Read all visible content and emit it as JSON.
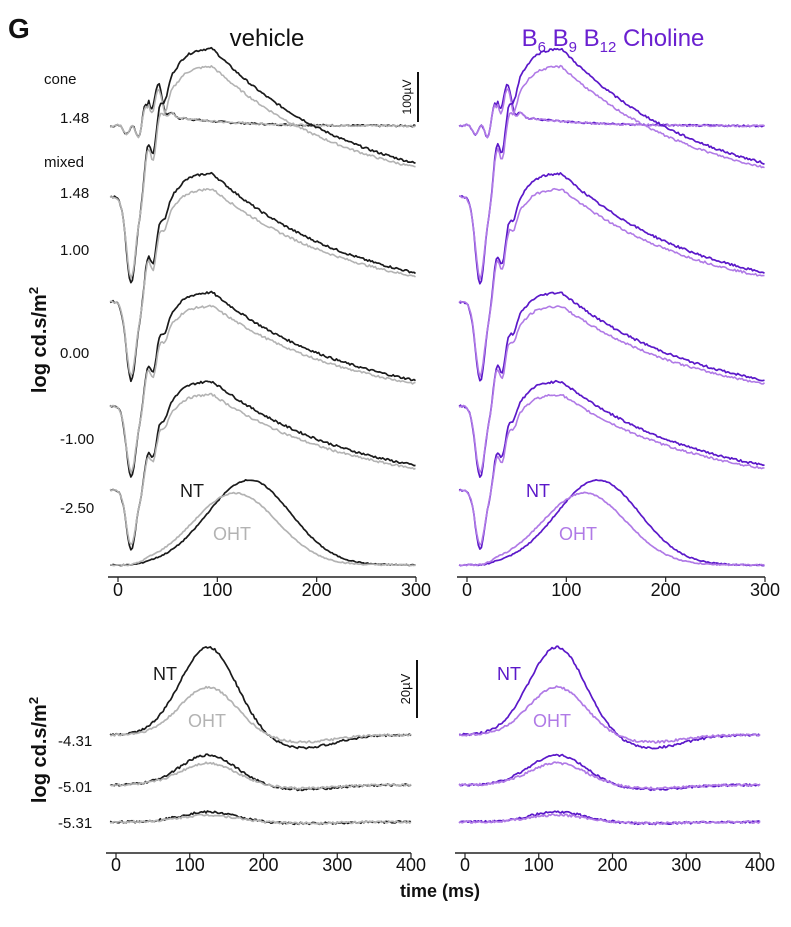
{
  "figure": {
    "panel_label": "G",
    "column_titles": {
      "vehicle": "vehicle",
      "treatment_parts": [
        "B",
        "6",
        " B",
        "9",
        " B",
        "12",
        " Choline"
      ]
    },
    "y_axis_label": "log cd.s/m",
    "y_axis_label_sup": "2",
    "x_axis_label": "time (ms)",
    "scale_bars": {
      "top": "100µV",
      "bottom": "20µV"
    },
    "row_labels_top": {
      "cone": "cone",
      "mixed": "mixed",
      "intensities": [
        "1.48",
        "1.48",
        "1.00",
        "0.00",
        "-1.00",
        "-2.50"
      ]
    },
    "row_labels_bottom": {
      "intensities": [
        "-4.31",
        "-5.01",
        "-5.31"
      ]
    },
    "legend": {
      "nt": "NT",
      "oht": "OHT"
    },
    "colors": {
      "vehicle_nt": "#1a1a1a",
      "vehicle_oht": "#b3b3b3",
      "treat_nt": "#5b18c9",
      "treat_oht": "#b07ae6",
      "title_treat": "#6a20d0"
    }
  },
  "chart_data": [
    {
      "type": "line",
      "panel": "vehicle-top",
      "x_unit": "ms",
      "xlim": [
        0,
        300
      ],
      "x_ticks": [
        "0",
        "100",
        "200",
        "300"
      ],
      "series": [
        {
          "name": "NT"
        },
        {
          "name": "OHT"
        }
      ]
    },
    {
      "type": "line",
      "panel": "treatment-top",
      "x_unit": "ms",
      "xlim": [
        0,
        300
      ],
      "x_ticks": [
        "0",
        "100",
        "200",
        "300"
      ],
      "series": [
        {
          "name": "NT"
        },
        {
          "name": "OHT"
        }
      ]
    },
    {
      "type": "line",
      "panel": "vehicle-bottom",
      "x_unit": "ms",
      "xlim": [
        0,
        400
      ],
      "x_ticks": [
        "0",
        "100",
        "200",
        "300",
        "400"
      ],
      "series": [
        {
          "name": "NT"
        },
        {
          "name": "OHT"
        }
      ]
    },
    {
      "type": "line",
      "panel": "treatment-bottom",
      "x_unit": "ms",
      "xlim": [
        0,
        400
      ],
      "x_ticks": [
        "0",
        "100",
        "200",
        "300",
        "400"
      ],
      "series": [
        {
          "name": "NT"
        },
        {
          "name": "OHT"
        }
      ]
    }
  ]
}
